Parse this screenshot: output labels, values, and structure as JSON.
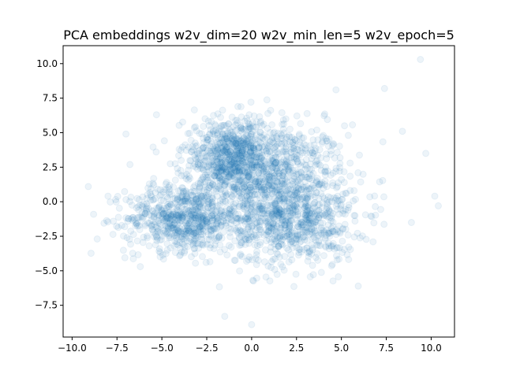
{
  "chart_data": {
    "type": "scatter",
    "title": "PCA embeddings w2v_dim=20 w2v_min_len=5 w2v_epoch=5",
    "xlabel": "",
    "ylabel": "",
    "xlim": [
      -10.5,
      11.3
    ],
    "ylim": [
      -9.8,
      11.3
    ],
    "xticks": [
      -10.0,
      -7.5,
      -5.0,
      -2.5,
      0.0,
      2.5,
      5.0,
      7.5,
      10.0
    ],
    "xtick_labels": [
      "−10.0",
      "−7.5",
      "−5.0",
      "−2.5",
      "0.0",
      "2.5",
      "5.0",
      "7.5",
      "10.0"
    ],
    "yticks": [
      -7.5,
      -5.0,
      -2.5,
      0.0,
      2.5,
      5.0,
      7.5,
      10.0
    ],
    "ytick_labels": [
      "−7.5",
      "−5.0",
      "−2.5",
      "0.0",
      "2.5",
      "5.0",
      "7.5",
      "10.0"
    ],
    "grid": false,
    "color": "#1f77b4",
    "point_alpha": 0.08,
    "series": [
      {
        "values_desc": "dense cloud of 2D PCA points",
        "clusters": [
          {
            "center": [
              1.3,
              1.8
            ],
            "spread": [
              2.0,
              1.9
            ]
          },
          {
            "center": [
              -3.8,
              -1.2
            ],
            "spread": [
              1.6,
              1.2
            ]
          },
          {
            "center": [
              2.2,
              -1.5
            ],
            "spread": [
              1.8,
              1.6
            ]
          },
          {
            "center": [
              -1.0,
              3.3
            ],
            "spread": [
              1.4,
              1.4
            ]
          }
        ],
        "outliers": [
          [
            9.4,
            10.3
          ],
          [
            -9.1,
            1.1
          ],
          [
            10.2,
            0.4
          ],
          [
            8.9,
            -1.5
          ],
          [
            -8.6,
            -2.7
          ],
          [
            0.0,
            -8.9
          ],
          [
            -1.5,
            -8.3
          ],
          [
            10.4,
            -0.3
          ],
          [
            9.7,
            3.5
          ],
          [
            -8.0,
            0.4
          ],
          [
            4.7,
            8.1
          ],
          [
            7.4,
            8.2
          ],
          [
            -5.3,
            6.3
          ],
          [
            -7.0,
            4.9
          ],
          [
            8.4,
            5.1
          ],
          [
            -6.2,
            -4.7
          ]
        ]
      }
    ]
  }
}
